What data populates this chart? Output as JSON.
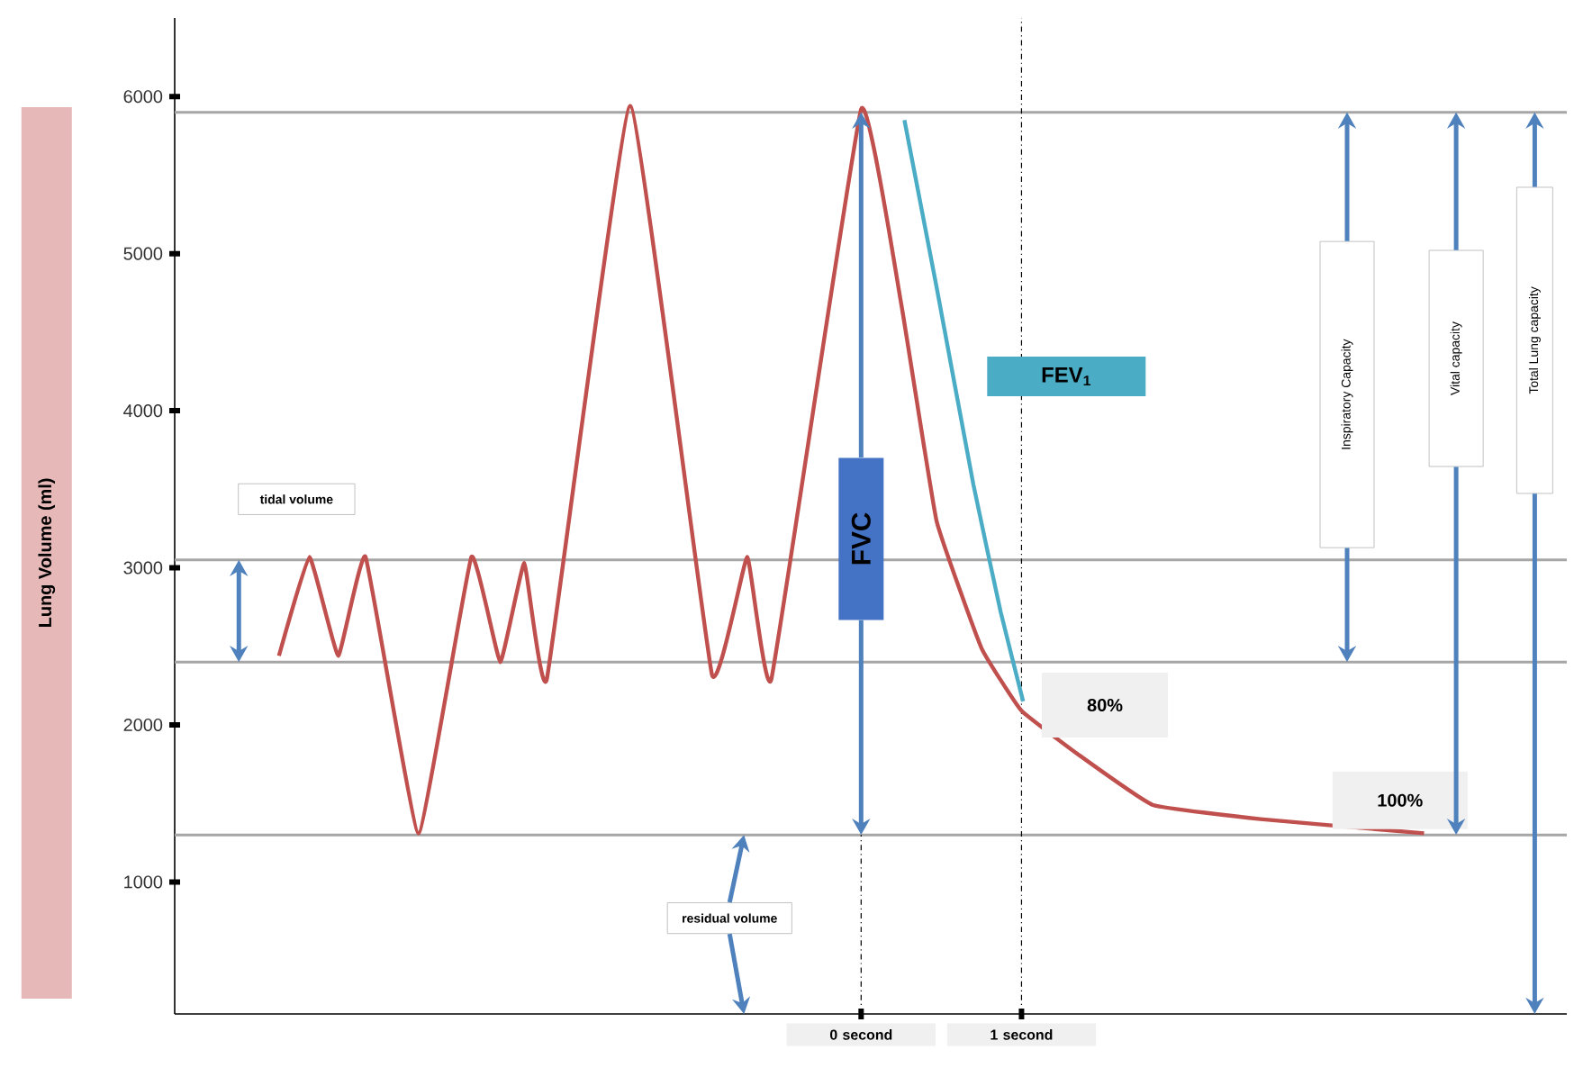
{
  "chart_data": {
    "type": "line",
    "ylabel": "Lung Volume (ml)",
    "xlim": [
      -4.28,
      4.4
    ],
    "ylim": [
      160,
      6500
    ],
    "xticks": [
      {
        "value": 0,
        "label": "0 second"
      },
      {
        "value": 1,
        "label": "1 second"
      }
    ],
    "yticks": [
      1000,
      2000,
      3000,
      4000,
      5000,
      6000
    ],
    "series": [
      {
        "color": "#c0504d",
        "x": [
          -3.63,
          -3.44,
          -3.26,
          -3.09,
          -2.76,
          -2.43,
          -2.25,
          -2.1,
          -1.96,
          -1.44,
          -0.93,
          -0.71,
          -0.56,
          0,
          0.25,
          0.47,
          0.75,
          1.0,
          1.37,
          1.82,
          2.49,
          3.51
        ],
        "values": [
          2440,
          3070,
          2440,
          3070,
          1310,
          3070,
          2400,
          3030,
          2290,
          5940,
          2320,
          3070,
          2290,
          5920,
          4680,
          3300,
          2490,
          2090,
          1800,
          1490,
          1400,
          1310
        ]
      },
      {
        "type": "line",
        "color": "#4bacc6",
        "x": [
          0.27,
          0.47,
          0.7,
          0.87,
          1.01
        ],
        "values": [
          5850,
          4790,
          3530,
          2720,
          2150
        ]
      }
    ],
    "ref_lines": [
      {
        "axis": "y",
        "value": 5900,
        "color": "#a6a6a6"
      },
      {
        "axis": "y",
        "value": 3050,
        "color": "#a6a6a6"
      },
      {
        "axis": "y",
        "value": 2400,
        "color": "#a6a6a6"
      },
      {
        "axis": "y",
        "value": 1300,
        "color": "#a6a6a6"
      },
      {
        "axis": "x",
        "value": 1,
        "color": "#000000",
        "line_style": "dashed"
      }
    ],
    "annotations": [
      "tidal volume",
      "residual volume",
      "FVC",
      "FEV$_{1}$",
      "80%",
      "100%",
      "Inspiratory Capacity",
      "Vital capacity",
      "Total Lung capacity"
    ],
    "grid": false
  }
}
